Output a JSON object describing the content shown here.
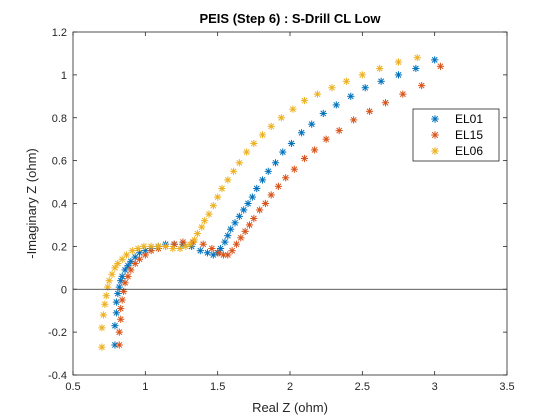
{
  "chart_data": {
    "type": "scatter",
    "title": "PEIS (Step 6) : S-Drill CL Low",
    "xlabel": "Real Z (ohm)",
    "ylabel": "-Imaginary Z (ohm)",
    "xlim": [
      0.5,
      3.5
    ],
    "ylim": [
      -0.4,
      1.2
    ],
    "xticks": [
      0.5,
      1,
      1.5,
      2,
      2.5,
      3,
      3.5
    ],
    "yticks": [
      -0.4,
      -0.2,
      0,
      0.2,
      0.4,
      0.6,
      0.8,
      1,
      1.2
    ],
    "xtick_labels": [
      "0.5",
      "1",
      "1.5",
      "2",
      "2.5",
      "3",
      "3.5"
    ],
    "ytick_labels": [
      "-0.4",
      "-0.2",
      "0",
      "0.2",
      "0.4",
      "0.6",
      "0.8",
      "1",
      "1.2"
    ],
    "zero_line": true,
    "grid": false,
    "legend_position": "right",
    "marker": "asterisk",
    "series": [
      {
        "name": "EL01",
        "color": "#0072BD",
        "x": [
          0.79,
          0.79,
          0.8,
          0.8,
          0.81,
          0.82,
          0.83,
          0.84,
          0.86,
          0.88,
          0.9,
          0.93,
          0.96,
          1.0,
          1.04,
          1.09,
          1.14,
          1.2,
          1.26,
          1.32,
          1.38,
          1.43,
          1.47,
          1.5,
          1.52,
          1.55,
          1.57,
          1.59,
          1.62,
          1.65,
          1.68,
          1.71,
          1.74,
          1.77,
          1.81,
          1.85,
          1.9,
          1.95,
          2.01,
          2.08,
          2.15,
          2.23,
          2.32,
          2.42,
          2.52,
          2.63,
          2.75,
          2.87,
          3.0
        ],
        "y": [
          -0.26,
          -0.17,
          -0.11,
          -0.06,
          -0.02,
          0.01,
          0.04,
          0.06,
          0.09,
          0.11,
          0.13,
          0.15,
          0.17,
          0.18,
          0.19,
          0.2,
          0.21,
          0.21,
          0.21,
          0.2,
          0.18,
          0.17,
          0.16,
          0.17,
          0.19,
          0.22,
          0.25,
          0.28,
          0.31,
          0.34,
          0.37,
          0.4,
          0.43,
          0.47,
          0.51,
          0.55,
          0.59,
          0.64,
          0.68,
          0.73,
          0.77,
          0.82,
          0.86,
          0.9,
          0.94,
          0.97,
          1.0,
          1.03,
          1.07
        ]
      },
      {
        "name": "EL15",
        "color": "#D95319",
        "x": [
          0.82,
          0.82,
          0.83,
          0.83,
          0.84,
          0.85,
          0.86,
          0.88,
          0.9,
          0.93,
          0.96,
          1.0,
          1.04,
          1.09,
          1.14,
          1.2,
          1.26,
          1.33,
          1.4,
          1.46,
          1.51,
          1.54,
          1.57,
          1.6,
          1.63,
          1.66,
          1.69,
          1.72,
          1.75,
          1.79,
          1.83,
          1.87,
          1.92,
          1.97,
          2.03,
          2.1,
          2.17,
          2.25,
          2.34,
          2.44,
          2.55,
          2.66,
          2.78,
          2.91,
          3.04
        ],
        "y": [
          -0.26,
          -0.2,
          -0.14,
          -0.09,
          -0.05,
          -0.01,
          0.03,
          0.06,
          0.09,
          0.12,
          0.14,
          0.16,
          0.18,
          0.19,
          0.2,
          0.21,
          0.22,
          0.22,
          0.21,
          0.19,
          0.17,
          0.16,
          0.16,
          0.18,
          0.21,
          0.24,
          0.27,
          0.3,
          0.33,
          0.37,
          0.4,
          0.44,
          0.48,
          0.52,
          0.56,
          0.61,
          0.65,
          0.7,
          0.74,
          0.79,
          0.83,
          0.87,
          0.91,
          0.95,
          1.04
        ]
      },
      {
        "name": "EL06",
        "color": "#EDB120",
        "x": [
          0.7,
          0.7,
          0.71,
          0.72,
          0.73,
          0.74,
          0.75,
          0.77,
          0.79,
          0.81,
          0.84,
          0.87,
          0.91,
          0.95,
          0.99,
          1.04,
          1.09,
          1.14,
          1.19,
          1.24,
          1.28,
          1.31,
          1.34,
          1.36,
          1.39,
          1.41,
          1.44,
          1.47,
          1.5,
          1.53,
          1.57,
          1.61,
          1.65,
          1.7,
          1.75,
          1.81,
          1.87,
          1.94,
          2.02,
          2.1,
          2.19,
          2.29,
          2.39,
          2.5,
          2.62,
          2.75,
          2.88
        ],
        "y": [
          -0.27,
          -0.18,
          -0.12,
          -0.07,
          -0.03,
          0.01,
          0.04,
          0.07,
          0.1,
          0.12,
          0.14,
          0.16,
          0.18,
          0.19,
          0.2,
          0.2,
          0.2,
          0.2,
          0.19,
          0.19,
          0.2,
          0.21,
          0.23,
          0.26,
          0.29,
          0.32,
          0.35,
          0.39,
          0.43,
          0.47,
          0.51,
          0.55,
          0.59,
          0.64,
          0.68,
          0.72,
          0.76,
          0.8,
          0.84,
          0.88,
          0.91,
          0.94,
          0.97,
          1.0,
          1.03,
          1.06,
          1.08
        ]
      }
    ]
  }
}
